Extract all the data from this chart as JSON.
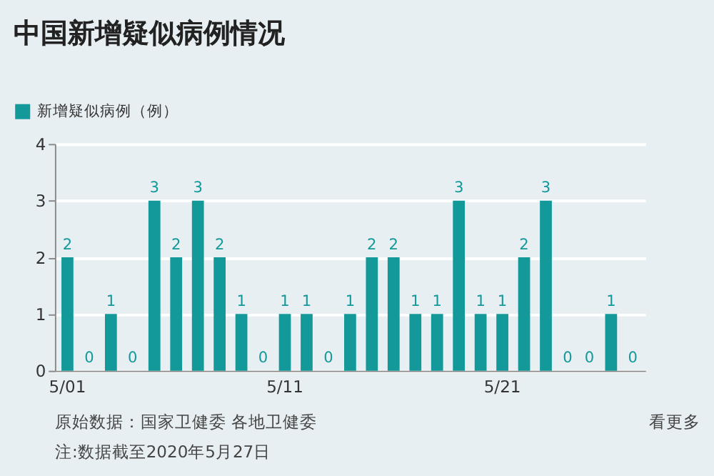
{
  "chart_data": {
    "type": "bar",
    "title": "中国新增疑似病例情况",
    "categories": [
      "5/01",
      null,
      null,
      null,
      null,
      null,
      null,
      null,
      null,
      null,
      "5/11",
      null,
      null,
      null,
      null,
      null,
      null,
      null,
      null,
      null,
      "5/21",
      null,
      null,
      null,
      null,
      null,
      null
    ],
    "series": [
      {
        "name": "新增疑似病例（例）",
        "color": "#14999a",
        "values": [
          2,
          0,
          1,
          0,
          3,
          2,
          3,
          2,
          1,
          0,
          1,
          1,
          0,
          1,
          2,
          2,
          1,
          1,
          3,
          1,
          1,
          2,
          3,
          0,
          0,
          1,
          0
        ]
      }
    ],
    "ylim": [
      0,
      4
    ],
    "yticks": [
      0,
      1,
      2,
      3,
      4
    ],
    "grid": "y",
    "legend": "top left",
    "data_labels": true,
    "annotations": [
      "注:数据截至2020年5月27日",
      "原始数据：国家卫健委 各地卫健委",
      "看更多"
    ]
  }
}
